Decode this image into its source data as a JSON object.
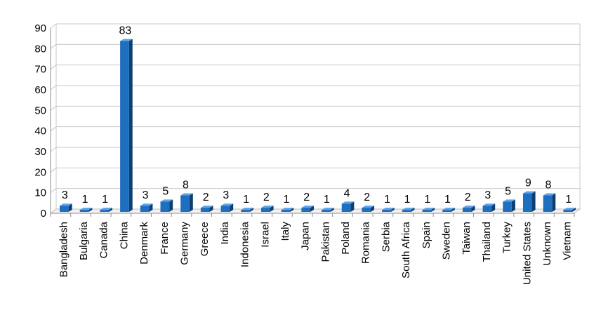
{
  "chart_data": {
    "type": "bar",
    "categories": [
      "Bangladesh",
      "Bulgaria",
      "Canada",
      "China",
      "Denmark",
      "France",
      "Germany",
      "Greece",
      "India",
      "Indonesia",
      "Israel",
      "Italy",
      "Japan",
      "Pakistan",
      "Poland",
      "Romania",
      "Serbia",
      "South Africa",
      "Spain",
      "Sweden",
      "Taiwan",
      "Thailand",
      "Turkey",
      "United States",
      "Unknown",
      "Vietnam"
    ],
    "values": [
      3,
      1,
      1,
      83,
      3,
      5,
      8,
      2,
      3,
      1,
      2,
      1,
      2,
      1,
      4,
      2,
      1,
      1,
      1,
      1,
      2,
      3,
      5,
      9,
      8,
      1
    ],
    "data_labels": [
      "3",
      "1",
      "1",
      "83",
      "3",
      "5",
      "8",
      "2",
      "3",
      "1",
      "2",
      "1",
      "2",
      "1",
      "4",
      "2",
      "1",
      "1",
      "1",
      "1",
      "2",
      "3",
      "5",
      "9",
      "8",
      "1"
    ],
    "y_ticks": [
      "0",
      "10",
      "20",
      "30",
      "40",
      "50",
      "60",
      "70",
      "80",
      "90"
    ],
    "ylim": [
      0,
      90
    ],
    "title": "",
    "xlabel": "",
    "ylabel": "",
    "grid": true,
    "bar_color": "#1f6fbf",
    "bar_side_color": "#0d3f73",
    "bar_top_color": "#5ea3e6"
  }
}
